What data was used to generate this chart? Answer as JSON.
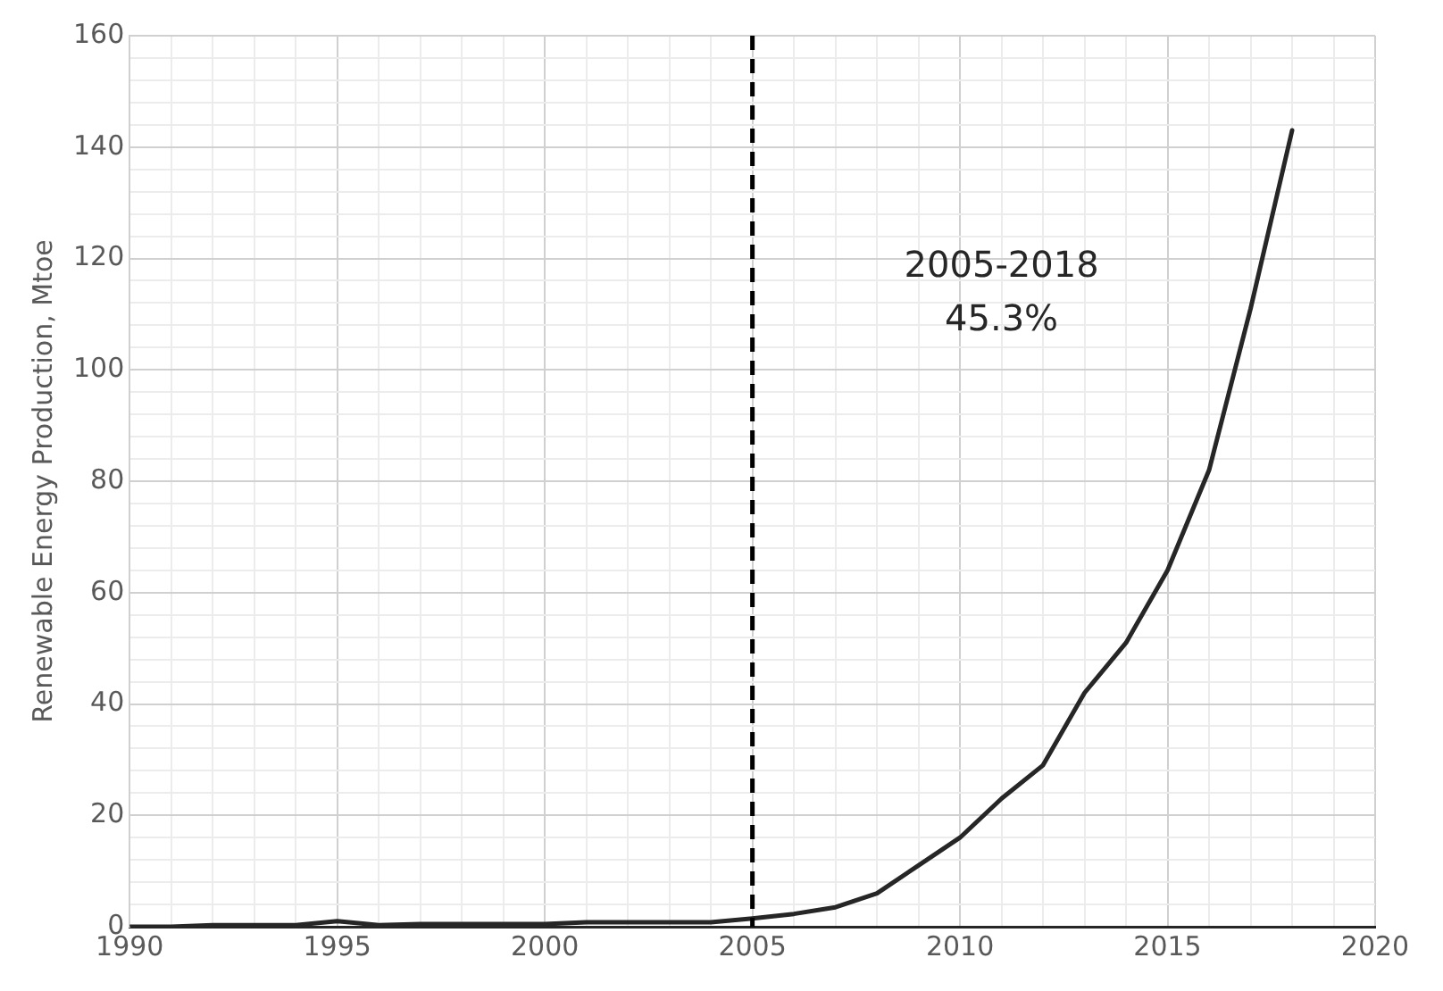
{
  "chart_data": {
    "type": "line",
    "ylabel": "Renewable Energy Production, Mtoe",
    "x": [
      1990,
      1991,
      1992,
      1993,
      1994,
      1995,
      1996,
      1997,
      1998,
      1999,
      2000,
      2001,
      2002,
      2003,
      2004,
      2005,
      2006,
      2007,
      2008,
      2009,
      2010,
      2011,
      2012,
      2013,
      2014,
      2015,
      2016,
      2017,
      2018
    ],
    "series": [
      {
        "color": "#262626",
        "values": [
          0,
          0,
          0.3,
          0.3,
          0.3,
          1,
          0.3,
          0.5,
          0.5,
          0.5,
          0.5,
          0.8,
          0.8,
          0.8,
          0.8,
          1.5,
          2.3,
          3.5,
          6,
          11,
          16,
          23,
          29,
          42,
          51,
          64,
          82,
          111,
          143
        ]
      }
    ],
    "xlim": [
      1990,
      2020
    ],
    "xticks": [
      1990,
      {
        "value": 1991,
        "label": null
      },
      {
        "value": 1992,
        "label": null
      },
      {
        "value": 1993,
        "label": null
      },
      {
        "value": 1994,
        "label": null
      },
      1995,
      {
        "value": 1996,
        "label": null
      },
      {
        "value": 1997,
        "label": null
      },
      {
        "value": 1998,
        "label": null
      },
      {
        "value": 1999,
        "label": null
      },
      2000,
      {
        "value": 2001,
        "label": null
      },
      {
        "value": 2002,
        "label": null
      },
      {
        "value": 2003,
        "label": null
      },
      {
        "value": 2004,
        "label": null
      },
      2005,
      {
        "value": 2006,
        "label": null
      },
      {
        "value": 2007,
        "label": null
      },
      {
        "value": 2008,
        "label": null
      },
      {
        "value": 2009,
        "label": null
      },
      2010,
      {
        "value": 2011,
        "label": null
      },
      {
        "value": 2012,
        "label": null
      },
      {
        "value": 2013,
        "label": null
      },
      {
        "value": 2014,
        "label": null
      },
      2015,
      {
        "value": 2016,
        "label": null
      },
      {
        "value": 2017,
        "label": null
      },
      {
        "value": 2018,
        "label": null
      },
      {
        "value": 2019,
        "label": null
      },
      2020
    ],
    "ylim": [
      0,
      160
    ],
    "yticks": [
      0,
      {
        "value": 4,
        "label": null
      },
      {
        "value": 8,
        "label": null
      },
      {
        "value": 12,
        "label": null
      },
      {
        "value": 16,
        "label": null
      },
      20,
      {
        "value": 24,
        "label": null
      },
      {
        "value": 28,
        "label": null
      },
      {
        "value": 32,
        "label": null
      },
      {
        "value": 36,
        "label": null
      },
      40,
      {
        "value": 44,
        "label": null
      },
      {
        "value": 48,
        "label": null
      },
      {
        "value": 52,
        "label": null
      },
      {
        "value": 56,
        "label": null
      },
      60,
      {
        "value": 64,
        "label": null
      },
      {
        "value": 68,
        "label": null
      },
      {
        "value": 72,
        "label": null
      },
      {
        "value": 76,
        "label": null
      },
      80,
      {
        "value": 84,
        "label": null
      },
      {
        "value": 88,
        "label": null
      },
      {
        "value": 92,
        "label": null
      },
      {
        "value": 96,
        "label": null
      },
      100,
      {
        "value": 104,
        "label": null
      },
      {
        "value": 108,
        "label": null
      },
      {
        "value": 112,
        "label": null
      },
      {
        "value": 116,
        "label": null
      },
      120,
      {
        "value": 124,
        "label": null
      },
      {
        "value": 128,
        "label": null
      },
      {
        "value": 132,
        "label": null
      },
      {
        "value": 136,
        "label": null
      },
      140,
      {
        "value": 144,
        "label": null
      },
      {
        "value": 148,
        "label": null
      },
      {
        "value": 152,
        "label": null
      },
      {
        "value": 156,
        "label": null
      },
      160
    ],
    "grid": true,
    "line_style": "solid",
    "marker": "none",
    "legend": false,
    "ref_lines": [
      {
        "axis": "x",
        "value": 2005,
        "color": "#000000",
        "line_style": "dashed"
      }
    ],
    "annotations": [
      "2005-2018",
      "45.3%"
    ]
  }
}
